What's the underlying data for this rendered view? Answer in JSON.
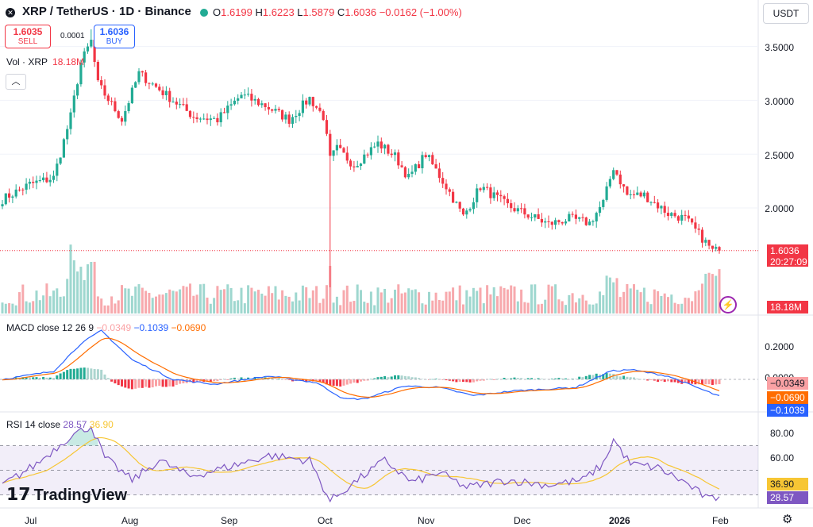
{
  "header": {
    "symbol": "XRP / TetherUS · 1D · Binance",
    "open_label": "O",
    "open": "1.6199",
    "high_label": "H",
    "high": "1.6223",
    "low_label": "L",
    "low": "1.5879",
    "close_label": "C",
    "close": "1.6036",
    "change": "−0.0162 (−1.00%)"
  },
  "trade": {
    "sell_price": "1.6035",
    "sell_label": "SELL",
    "spread": "0.0001",
    "buy_price": "1.6036",
    "buy_label": "BUY"
  },
  "currency": "USDT",
  "volume": {
    "label": "Vol · XRP",
    "value": "18.18M"
  },
  "price_axis": [
    "3.5000",
    "3.0000",
    "2.5000",
    "2.0000"
  ],
  "last_price": {
    "value": "1.6036",
    "countdown": "20:27:09"
  },
  "volume_tag": "18.18M",
  "macd": {
    "label": "MACD close 12 26 9",
    "hist_value": "−0.0349",
    "macd_value": "−0.1039",
    "signal_value": "−0.0690",
    "axis": [
      "0.2000",
      "0.0000"
    ],
    "tag_hist": "−0.0349",
    "tag_signal": "−0.0690",
    "tag_macd": "−0.1039"
  },
  "rsi": {
    "label": "RSI 14 close",
    "rsi_value": "28.57",
    "ma_value": "36.90",
    "axis": [
      "80.00",
      "60.00"
    ],
    "tag_ma": "36.90",
    "tag_rsi": "28.57"
  },
  "x_axis": [
    "Jul",
    "Aug",
    "Sep",
    "Oct",
    "Nov",
    "Dec",
    "2026",
    "Feb"
  ],
  "brand": "TradingView",
  "colors": {
    "up": "#22ab94",
    "down": "#f23645",
    "macd": "#2962ff",
    "signal": "#ff6d00",
    "rsi": "#7e57c2",
    "rsi_ma": "#f7c634"
  },
  "chart_data": {
    "type": "candlestick",
    "price_anchors": [
      {
        "day": 0,
        "price": 2.08
      },
      {
        "day": 8,
        "price": 2.22
      },
      {
        "day": 15,
        "price": 2.28
      },
      {
        "day": 20,
        "price": 2.85
      },
      {
        "day": 23,
        "price": 3.35
      },
      {
        "day": 26,
        "price": 3.55
      },
      {
        "day": 28,
        "price": 3.15
      },
      {
        "day": 35,
        "price": 2.82
      },
      {
        "day": 40,
        "price": 3.25
      },
      {
        "day": 48,
        "price": 3.05
      },
      {
        "day": 56,
        "price": 2.85
      },
      {
        "day": 63,
        "price": 2.82
      },
      {
        "day": 70,
        "price": 3.05
      },
      {
        "day": 77,
        "price": 2.95
      },
      {
        "day": 84,
        "price": 2.82
      },
      {
        "day": 90,
        "price": 3.02
      },
      {
        "day": 94,
        "price": 2.85
      },
      {
        "day": 96,
        "price": 2.45
      },
      {
        "day": 98,
        "price": 2.55
      },
      {
        "day": 103,
        "price": 2.4
      },
      {
        "day": 110,
        "price": 2.6
      },
      {
        "day": 115,
        "price": 2.48
      },
      {
        "day": 119,
        "price": 2.28
      },
      {
        "day": 124,
        "price": 2.5
      },
      {
        "day": 130,
        "price": 2.2
      },
      {
        "day": 135,
        "price": 1.92
      },
      {
        "day": 140,
        "price": 2.2
      },
      {
        "day": 148,
        "price": 2.02
      },
      {
        "day": 155,
        "price": 1.92
      },
      {
        "day": 160,
        "price": 1.85
      },
      {
        "day": 166,
        "price": 1.9
      },
      {
        "day": 172,
        "price": 1.86
      },
      {
        "day": 176,
        "price": 2.05
      },
      {
        "day": 179,
        "price": 2.38
      },
      {
        "day": 183,
        "price": 2.12
      },
      {
        "day": 188,
        "price": 2.12
      },
      {
        "day": 195,
        "price": 1.95
      },
      {
        "day": 200,
        "price": 1.9
      },
      {
        "day": 205,
        "price": 1.72
      },
      {
        "day": 208,
        "price": 1.6
      },
      {
        "day": 210,
        "price": 1.6036
      }
    ],
    "notable": {
      "crash_day": 96,
      "crash_low": 0.0,
      "peak_day": 26,
      "peak_high": 3.66
    },
    "macd_anchors": [
      {
        "day": 0,
        "m": 0.0
      },
      {
        "day": 15,
        "m": 0.05
      },
      {
        "day": 23,
        "m": 0.22
      },
      {
        "day": 29,
        "m": 0.3
      },
      {
        "day": 38,
        "m": 0.12
      },
      {
        "day": 50,
        "m": 0.0
      },
      {
        "day": 62,
        "m": -0.03
      },
      {
        "day": 78,
        "m": 0.02
      },
      {
        "day": 92,
        "m": -0.02
      },
      {
        "day": 100,
        "m": -0.12
      },
      {
        "day": 106,
        "m": -0.12
      },
      {
        "day": 118,
        "m": -0.04
      },
      {
        "day": 128,
        "m": -0.05
      },
      {
        "day": 138,
        "m": -0.1
      },
      {
        "day": 150,
        "m": -0.07
      },
      {
        "day": 168,
        "m": -0.05
      },
      {
        "day": 178,
        "m": 0.05
      },
      {
        "day": 184,
        "m": 0.06
      },
      {
        "day": 195,
        "m": 0.02
      },
      {
        "day": 210,
        "m": -0.1039
      }
    ],
    "rsi_anchors": [
      {
        "day": 0,
        "r": 38
      },
      {
        "day": 10,
        "r": 55
      },
      {
        "day": 20,
        "r": 78
      },
      {
        "day": 26,
        "r": 86
      },
      {
        "day": 30,
        "r": 60
      },
      {
        "day": 38,
        "r": 42
      },
      {
        "day": 46,
        "r": 58
      },
      {
        "day": 55,
        "r": 45
      },
      {
        "day": 68,
        "r": 54
      },
      {
        "day": 78,
        "r": 62
      },
      {
        "day": 90,
        "r": 58
      },
      {
        "day": 96,
        "r": 25
      },
      {
        "day": 104,
        "r": 42
      },
      {
        "day": 112,
        "r": 58
      },
      {
        "day": 120,
        "r": 40
      },
      {
        "day": 128,
        "r": 48
      },
      {
        "day": 136,
        "r": 36
      },
      {
        "day": 148,
        "r": 42
      },
      {
        "day": 160,
        "r": 38
      },
      {
        "day": 170,
        "r": 42
      },
      {
        "day": 176,
        "r": 55
      },
      {
        "day": 179,
        "r": 75
      },
      {
        "day": 184,
        "r": 55
      },
      {
        "day": 192,
        "r": 52
      },
      {
        "day": 200,
        "r": 40
      },
      {
        "day": 207,
        "r": 26
      },
      {
        "day": 210,
        "r": 28.57
      }
    ]
  }
}
